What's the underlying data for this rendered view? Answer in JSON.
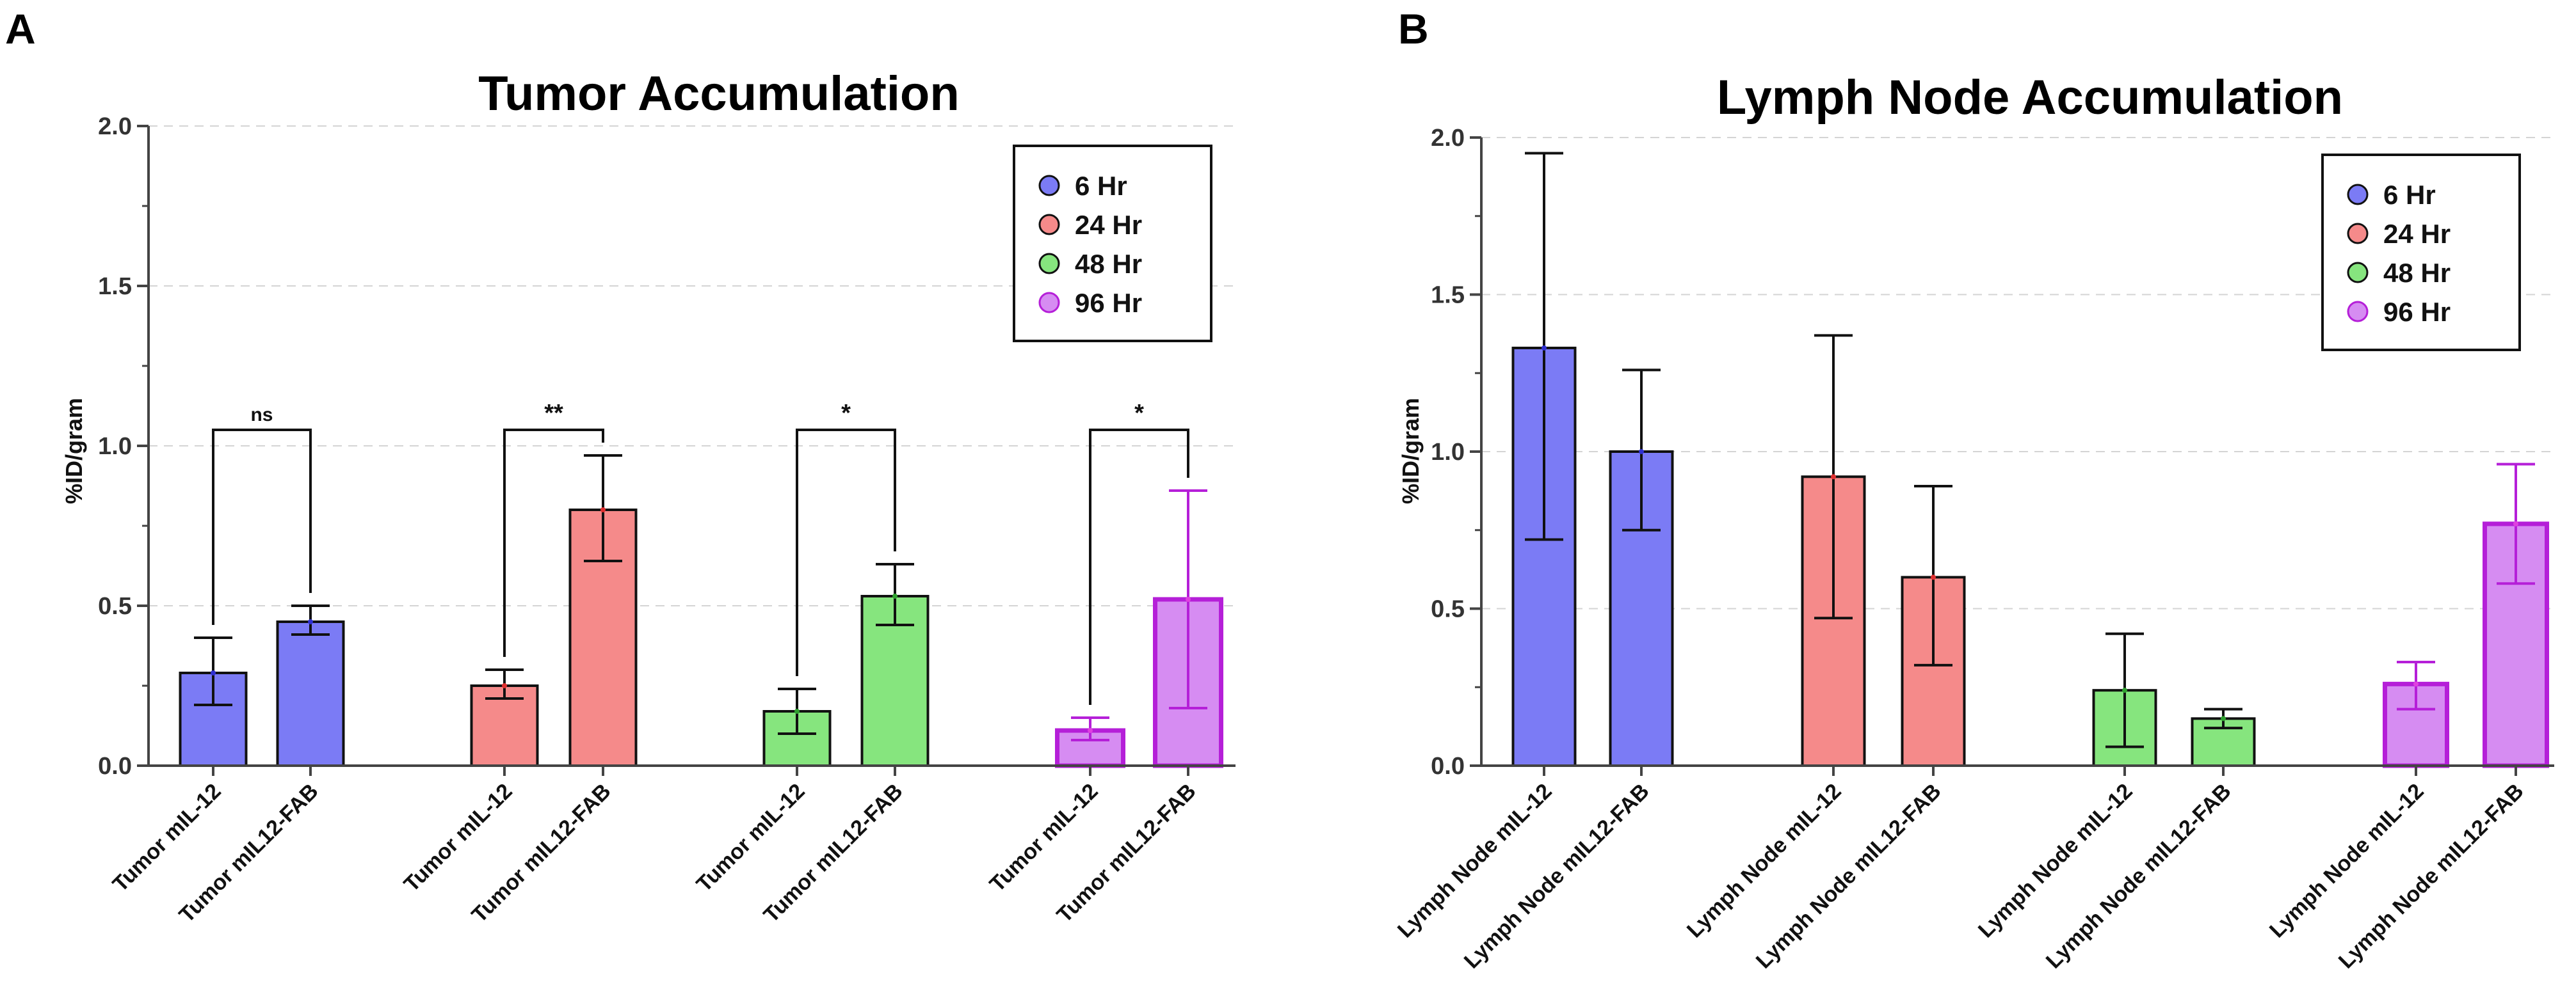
{
  "panels": [
    {
      "letter": "A",
      "legend": [
        "6 Hr",
        "24 Hr",
        "48 Hr",
        "96 Hr"
      ],
      "colors": {
        "6 Hr": "#7b7bf5",
        "24 Hr": "#f58a8a",
        "48 Hr": "#86e57e",
        "96 Hr": "#d68cf2"
      },
      "edge_colors": {
        "6 Hr": "#111111",
        "24 Hr": "#111111",
        "48 Hr": "#111111",
        "96 Hr": "#b51fd8"
      }
    },
    {
      "letter": "B",
      "legend": [
        "6 Hr",
        "24 Hr",
        "48 Hr",
        "96 Hr"
      ],
      "colors": {
        "6 Hr": "#7b7bf5",
        "24 Hr": "#f58a8a",
        "48 Hr": "#86e57e",
        "96 Hr": "#d68cf2"
      },
      "edge_colors": {
        "6 Hr": "#111111",
        "24 Hr": "#111111",
        "48 Hr": "#111111",
        "96 Hr": "#b51fd8"
      }
    }
  ],
  "chart_data": [
    {
      "type": "bar",
      "title": "Tumor Accumulation",
      "ylabel": "%ID/gram",
      "xlabel": "",
      "ylim": [
        0,
        2.0
      ],
      "yticks": [
        "0.0",
        "0.5",
        "1.0",
        "1.5",
        "2.0"
      ],
      "grid": true,
      "legend_position": "top-right",
      "bars": [
        {
          "label": "Tumor mIL-12",
          "group": "6 Hr",
          "value": 0.29,
          "err_low": 0.19,
          "err_high": 0.4
        },
        {
          "label": "Tumor mIL12-FAB",
          "group": "6 Hr",
          "value": 0.45,
          "err_low": 0.41,
          "err_high": 0.5
        },
        {
          "label": "Tumor mIL-12",
          "group": "24 Hr",
          "value": 0.25,
          "err_low": 0.21,
          "err_high": 0.3
        },
        {
          "label": "Tumor mIL12-FAB",
          "group": "24 Hr",
          "value": 0.8,
          "err_low": 0.64,
          "err_high": 0.97
        },
        {
          "label": "Tumor mIL-12",
          "group": "48 Hr",
          "value": 0.17,
          "err_low": 0.1,
          "err_high": 0.24
        },
        {
          "label": "Tumor mIL12-FAB",
          "group": "48 Hr",
          "value": 0.53,
          "err_low": 0.44,
          "err_high": 0.63
        },
        {
          "label": "Tumor mIL-12",
          "group": "96 Hr",
          "value": 0.11,
          "err_low": 0.08,
          "err_high": 0.15
        },
        {
          "label": "Tumor mIL12-FAB",
          "group": "96 Hr",
          "value": 0.52,
          "err_low": 0.18,
          "err_high": 0.86
        }
      ],
      "significance": [
        {
          "left": 0,
          "right": 1,
          "label": "ns",
          "y": 1.05
        },
        {
          "left": 2,
          "right": 3,
          "label": "**",
          "y": 1.05
        },
        {
          "left": 4,
          "right": 5,
          "label": "*",
          "y": 1.05
        },
        {
          "left": 6,
          "right": 7,
          "label": "*",
          "y": 1.05
        }
      ]
    },
    {
      "type": "bar",
      "title": "Lymph Node Accumulation",
      "ylabel": "%ID/gram",
      "xlabel": "",
      "ylim": [
        0,
        2.0
      ],
      "yticks": [
        "0.0",
        "0.5",
        "1.0",
        "1.5",
        "2.0"
      ],
      "grid": true,
      "legend_position": "top-right",
      "bars": [
        {
          "label": "Lymph Node mIL-12",
          "group": "6 Hr",
          "value": 1.33,
          "err_low": 0.72,
          "err_high": 1.95
        },
        {
          "label": "Lymph Node mIL12-FAB",
          "group": "6 Hr",
          "value": 1.0,
          "err_low": 0.75,
          "err_high": 1.26
        },
        {
          "label": "Lymph Node mIL-12",
          "group": "24 Hr",
          "value": 0.92,
          "err_low": 0.47,
          "err_high": 1.37
        },
        {
          "label": "Lymph Node mIL12-FAB",
          "group": "24 Hr",
          "value": 0.6,
          "err_low": 0.32,
          "err_high": 0.89
        },
        {
          "label": "Lymph Node mIL-12",
          "group": "48 Hr",
          "value": 0.24,
          "err_low": 0.06,
          "err_high": 0.42
        },
        {
          "label": "Lymph Node mIL12-FAB",
          "group": "48 Hr",
          "value": 0.15,
          "err_low": 0.12,
          "err_high": 0.18
        },
        {
          "label": "Lymph Node mIL-12",
          "group": "96 Hr",
          "value": 0.26,
          "err_low": 0.18,
          "err_high": 0.33
        },
        {
          "label": "Lymph Node mIL12-FAB",
          "group": "96 Hr",
          "value": 0.77,
          "err_low": 0.58,
          "err_high": 0.96
        }
      ],
      "significance": []
    }
  ]
}
